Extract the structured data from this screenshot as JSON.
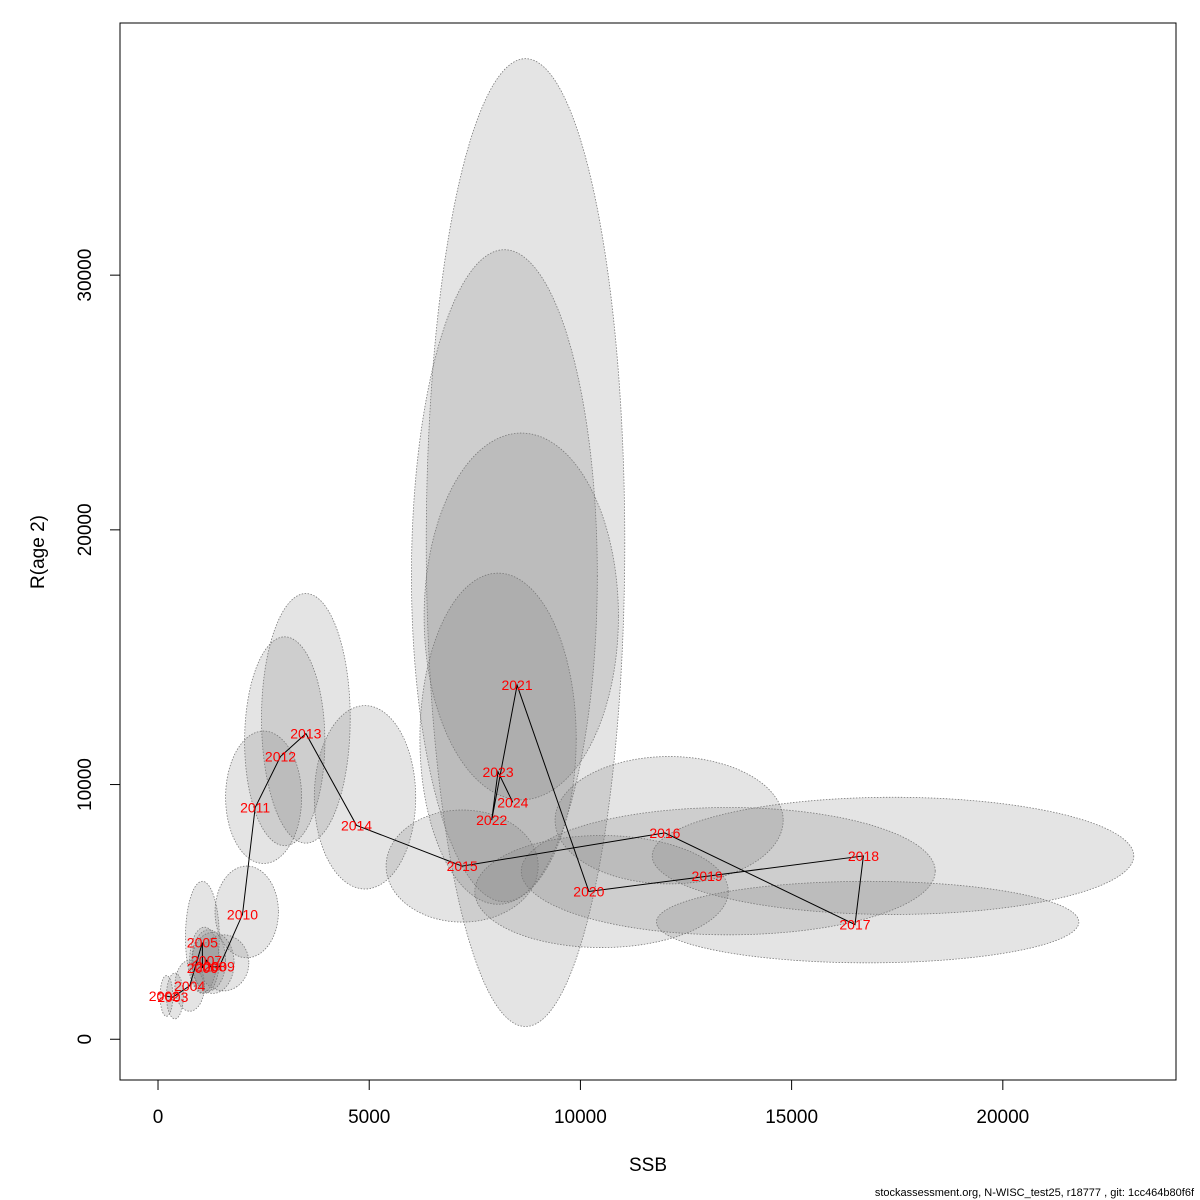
{
  "chart_data": {
    "type": "scatter",
    "xlabel": "SSB",
    "ylabel": "R(age 2)",
    "xlim": [
      -900,
      24100
    ],
    "ylim": [
      -1600,
      39900
    ],
    "x_ticks": [
      0,
      5000,
      10000,
      15000,
      20000
    ],
    "x_tick_labels": [
      "0",
      "5000",
      "10000",
      "15000",
      "20000"
    ],
    "y_ticks": [
      0,
      10000,
      20000,
      30000
    ],
    "y_tick_labels": [
      "0",
      "10000",
      "20000",
      "30000"
    ],
    "grid": false,
    "legend": "none",
    "points": [
      {
        "year": "2002",
        "ssb": 150,
        "r": 1700
      },
      {
        "year": "2003",
        "ssb": 350,
        "r": 1650
      },
      {
        "year": "2004",
        "ssb": 750,
        "r": 2100
      },
      {
        "year": "2005",
        "ssb": 1050,
        "r": 3800
      },
      {
        "year": "2006",
        "ssb": 1050,
        "r": 2800
      },
      {
        "year": "2007",
        "ssb": 1150,
        "r": 3100
      },
      {
        "year": "2008",
        "ssb": 1250,
        "r": 2850
      },
      {
        "year": "2009",
        "ssb": 1450,
        "r": 2850
      },
      {
        "year": "2010",
        "ssb": 2000,
        "r": 4900
      },
      {
        "year": "2011",
        "ssb": 2300,
        "r": 9100
      },
      {
        "year": "2012",
        "ssb": 2900,
        "r": 11100
      },
      {
        "year": "2013",
        "ssb": 3500,
        "r": 12000
      },
      {
        "year": "2014",
        "ssb": 4700,
        "r": 8400
      },
      {
        "year": "2015",
        "ssb": 7200,
        "r": 6800
      },
      {
        "year": "2016",
        "ssb": 12000,
        "r": 8100
      },
      {
        "year": "2017",
        "ssb": 16500,
        "r": 4500
      },
      {
        "year": "2018",
        "ssb": 16700,
        "r": 7200
      },
      {
        "year": "2019",
        "ssb": 13000,
        "r": 6400
      },
      {
        "year": "2020",
        "ssb": 10200,
        "r": 5800
      },
      {
        "year": "2021",
        "ssb": 8500,
        "r": 13900
      },
      {
        "year": "2022",
        "ssb": 7900,
        "r": 8600
      },
      {
        "year": "2023",
        "ssb": 8050,
        "r": 10500
      },
      {
        "year": "2024",
        "ssb": 8400,
        "r": 9300
      }
    ],
    "confidence_regions": [
      {
        "year": "2002",
        "cx": 200,
        "cy": 1700,
        "rx": 150,
        "ry": 800
      },
      {
        "year": "2003",
        "cx": 400,
        "cy": 1700,
        "rx": 200,
        "ry": 900
      },
      {
        "year": "2004",
        "cx": 750,
        "cy": 2100,
        "rx": 350,
        "ry": 1000
      },
      {
        "year": "2005",
        "cx": 1050,
        "cy": 4000,
        "rx": 400,
        "ry": 2200
      },
      {
        "year": "2006",
        "cx": 1100,
        "cy": 3100,
        "rx": 350,
        "ry": 1300
      },
      {
        "year": "2007",
        "cx": 1200,
        "cy": 3100,
        "rx": 400,
        "ry": 1200
      },
      {
        "year": "2008",
        "cx": 1300,
        "cy": 3000,
        "rx": 500,
        "ry": 1200
      },
      {
        "year": "2009",
        "cx": 1550,
        "cy": 3000,
        "rx": 600,
        "ry": 1100
      },
      {
        "year": "2010",
        "cx": 2100,
        "cy": 5000,
        "rx": 750,
        "ry": 1800
      },
      {
        "year": "2011",
        "cx": 2500,
        "cy": 9500,
        "rx": 900,
        "ry": 2600
      },
      {
        "year": "2012",
        "cx": 3000,
        "cy": 11700,
        "rx": 950,
        "ry": 4100
      },
      {
        "year": "2013",
        "cx": 3500,
        "cy": 12600,
        "rx": 1050,
        "ry": 4900
      },
      {
        "year": "2014",
        "cx": 4900,
        "cy": 9500,
        "rx": 1200,
        "ry": 3600
      },
      {
        "year": "2015",
        "cx": 7200,
        "cy": 6800,
        "rx": 1800,
        "ry": 2200
      },
      {
        "year": "2016",
        "cx": 12100,
        "cy": 8600,
        "rx": 2700,
        "ry": 2500
      },
      {
        "year": "2017",
        "cx": 16800,
        "cy": 4600,
        "rx": 5000,
        "ry": 1600
      },
      {
        "year": "2018",
        "cx": 17400,
        "cy": 7200,
        "rx": 5700,
        "ry": 2300
      },
      {
        "year": "2019",
        "cx": 13500,
        "cy": 6600,
        "rx": 4900,
        "ry": 2500
      },
      {
        "year": "2020",
        "cx": 10500,
        "cy": 5800,
        "rx": 3000,
        "ry": 2200
      },
      {
        "year": "2021",
        "cx": 8700,
        "cy": 19500,
        "rx": 2350,
        "ry": 19000
      },
      {
        "year": "2022",
        "cx": 8050,
        "cy": 11800,
        "rx": 1850,
        "ry": 6500
      },
      {
        "year": "2023",
        "cx": 8200,
        "cy": 18200,
        "rx": 2200,
        "ry": 12800
      },
      {
        "year": "2024",
        "cx": 8600,
        "cy": 16600,
        "rx": 2300,
        "ry": 7200
      }
    ]
  },
  "footer": {
    "text": "stockassessment.org, N-WISC_test25, r18777 , git: 1cc464b80f6f"
  }
}
